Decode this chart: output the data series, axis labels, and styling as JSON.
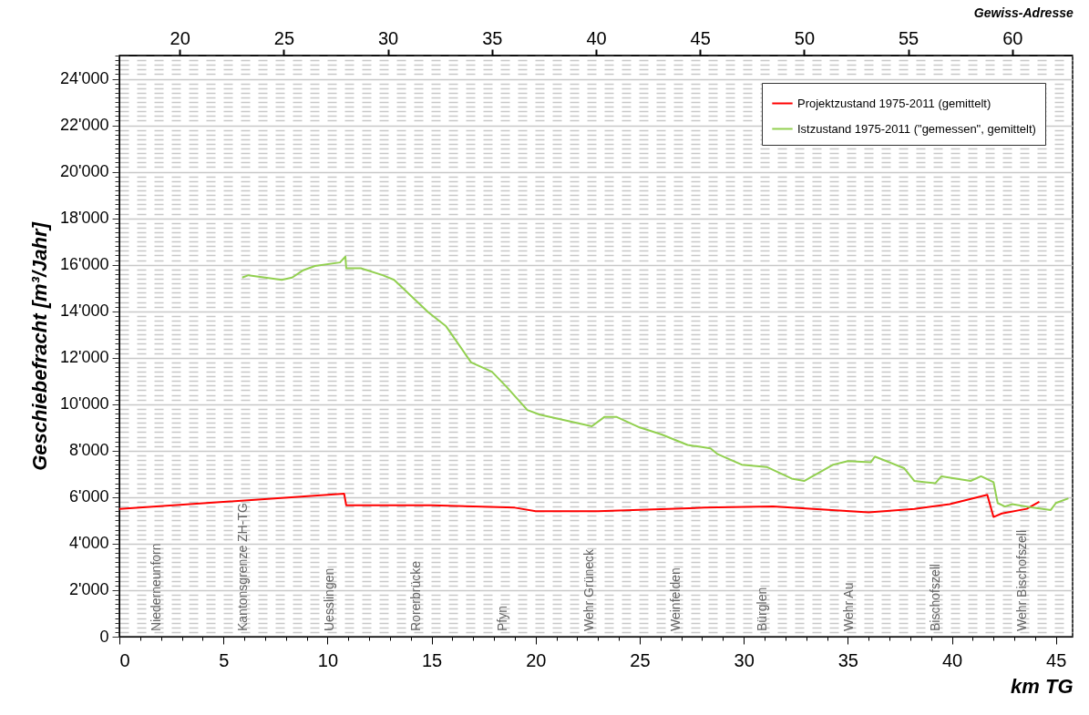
{
  "chart_data": {
    "type": "line",
    "title": "Gewiss-Adresse",
    "xlabel": "km TG",
    "ylabel": "Geschiebefracht [m³/Jahr]",
    "xlim": [
      0,
      45.8
    ],
    "ylim": [
      0,
      25000
    ],
    "xticks": [
      0,
      {
        "value": 1,
        "label": null
      },
      {
        "value": 2,
        "label": null
      },
      {
        "value": 3,
        "label": null
      },
      {
        "value": 4,
        "label": null
      },
      5,
      {
        "value": 6,
        "label": null
      },
      {
        "value": 7,
        "label": null
      },
      {
        "value": 8,
        "label": null
      },
      {
        "value": 9,
        "label": null
      },
      10,
      {
        "value": 11,
        "label": null
      },
      {
        "value": 12,
        "label": null
      },
      {
        "value": 13,
        "label": null
      },
      {
        "value": 14,
        "label": null
      },
      15,
      {
        "value": 16,
        "label": null
      },
      {
        "value": 17,
        "label": null
      },
      {
        "value": 18,
        "label": null
      },
      {
        "value": 19,
        "label": null
      },
      20,
      {
        "value": 21,
        "label": null
      },
      {
        "value": 22,
        "label": null
      },
      {
        "value": 23,
        "label": null
      },
      {
        "value": 24,
        "label": null
      },
      25,
      {
        "value": 26,
        "label": null
      },
      {
        "value": 27,
        "label": null
      },
      {
        "value": 28,
        "label": null
      },
      {
        "value": 29,
        "label": null
      },
      30,
      {
        "value": 31,
        "label": null
      },
      {
        "value": 32,
        "label": null
      },
      {
        "value": 33,
        "label": null
      },
      {
        "value": 34,
        "label": null
      },
      35,
      {
        "value": 36,
        "label": null
      },
      {
        "value": 37,
        "label": null
      },
      {
        "value": 38,
        "label": null
      },
      {
        "value": 39,
        "label": null
      },
      40,
      {
        "value": 41,
        "label": null
      },
      {
        "value": 42,
        "label": null
      },
      {
        "value": 43,
        "label": null
      },
      {
        "value": 44,
        "label": null
      },
      45
    ],
    "x2lim": [
      17.1,
      62.9
    ],
    "x2ticks": [
      20,
      25,
      30,
      35,
      40,
      45,
      50,
      55,
      60
    ],
    "yticks": [
      {
        "value": 0,
        "label": "0"
      },
      {
        "value": 200,
        "label": null
      },
      {
        "value": 400,
        "label": null
      },
      {
        "value": 600,
        "label": null
      },
      {
        "value": 800,
        "label": null
      },
      {
        "value": 1000,
        "label": null
      },
      {
        "value": 1200,
        "label": null
      },
      {
        "value": 1400,
        "label": null
      },
      {
        "value": 1600,
        "label": null
      },
      {
        "value": 1800,
        "label": null
      },
      {
        "value": 2000,
        "label": "2'000"
      },
      {
        "value": 2200,
        "label": null
      },
      {
        "value": 2400,
        "label": null
      },
      {
        "value": 2600,
        "label": null
      },
      {
        "value": 2800,
        "label": null
      },
      {
        "value": 3000,
        "label": null
      },
      {
        "value": 3200,
        "label": null
      },
      {
        "value": 3400,
        "label": null
      },
      {
        "value": 3600,
        "label": null
      },
      {
        "value": 3800,
        "label": null
      },
      {
        "value": 4000,
        "label": "4'000"
      },
      {
        "value": 4200,
        "label": null
      },
      {
        "value": 4400,
        "label": null
      },
      {
        "value": 4600,
        "label": null
      },
      {
        "value": 4800,
        "label": null
      },
      {
        "value": 5000,
        "label": null
      },
      {
        "value": 5200,
        "label": null
      },
      {
        "value": 5400,
        "label": null
      },
      {
        "value": 5600,
        "label": null
      },
      {
        "value": 5800,
        "label": null
      },
      {
        "value": 6000,
        "label": "6'000"
      },
      {
        "value": 6200,
        "label": null
      },
      {
        "value": 6400,
        "label": null
      },
      {
        "value": 6600,
        "label": null
      },
      {
        "value": 6800,
        "label": null
      },
      {
        "value": 7000,
        "label": null
      },
      {
        "value": 7200,
        "label": null
      },
      {
        "value": 7400,
        "label": null
      },
      {
        "value": 7600,
        "label": null
      },
      {
        "value": 7800,
        "label": null
      },
      {
        "value": 8000,
        "label": "8'000"
      },
      {
        "value": 8200,
        "label": null
      },
      {
        "value": 8400,
        "label": null
      },
      {
        "value": 8600,
        "label": null
      },
      {
        "value": 8800,
        "label": null
      },
      {
        "value": 9000,
        "label": null
      },
      {
        "value": 9200,
        "label": null
      },
      {
        "value": 9400,
        "label": null
      },
      {
        "value": 9600,
        "label": null
      },
      {
        "value": 9800,
        "label": null
      },
      {
        "value": 10000,
        "label": "10'000"
      },
      {
        "value": 10200,
        "label": null
      },
      {
        "value": 10400,
        "label": null
      },
      {
        "value": 10600,
        "label": null
      },
      {
        "value": 10800,
        "label": null
      },
      {
        "value": 11000,
        "label": null
      },
      {
        "value": 11200,
        "label": null
      },
      {
        "value": 11400,
        "label": null
      },
      {
        "value": 11600,
        "label": null
      },
      {
        "value": 11800,
        "label": null
      },
      {
        "value": 12000,
        "label": "12'000"
      },
      {
        "value": 12200,
        "label": null
      },
      {
        "value": 12400,
        "label": null
      },
      {
        "value": 12600,
        "label": null
      },
      {
        "value": 12800,
        "label": null
      },
      {
        "value": 13000,
        "label": null
      },
      {
        "value": 13200,
        "label": null
      },
      {
        "value": 13400,
        "label": null
      },
      {
        "value": 13600,
        "label": null
      },
      {
        "value": 13800,
        "label": null
      },
      {
        "value": 14000,
        "label": "14'000"
      },
      {
        "value": 14200,
        "label": null
      },
      {
        "value": 14400,
        "label": null
      },
      {
        "value": 14600,
        "label": null
      },
      {
        "value": 14800,
        "label": null
      },
      {
        "value": 15000,
        "label": null
      },
      {
        "value": 15200,
        "label": null
      },
      {
        "value": 15400,
        "label": null
      },
      {
        "value": 15600,
        "label": null
      },
      {
        "value": 15800,
        "label": null
      },
      {
        "value": 16000,
        "label": "16'000"
      },
      {
        "value": 16200,
        "label": null
      },
      {
        "value": 16400,
        "label": null
      },
      {
        "value": 16600,
        "label": null
      },
      {
        "value": 16800,
        "label": null
      },
      {
        "value": 17000,
        "label": null
      },
      {
        "value": 17200,
        "label": null
      },
      {
        "value": 17400,
        "label": null
      },
      {
        "value": 17600,
        "label": null
      },
      {
        "value": 17800,
        "label": null
      },
      {
        "value": 18000,
        "label": "18'000"
      },
      {
        "value": 18200,
        "label": null
      },
      {
        "value": 18400,
        "label": null
      },
      {
        "value": 18600,
        "label": null
      },
      {
        "value": 18800,
        "label": null
      },
      {
        "value": 19000,
        "label": null
      },
      {
        "value": 19200,
        "label": null
      },
      {
        "value": 19400,
        "label": null
      },
      {
        "value": 19600,
        "label": null
      },
      {
        "value": 19800,
        "label": null
      },
      {
        "value": 20000,
        "label": "20'000"
      },
      {
        "value": 20200,
        "label": null
      },
      {
        "value": 20400,
        "label": null
      },
      {
        "value": 20600,
        "label": null
      },
      {
        "value": 20800,
        "label": null
      },
      {
        "value": 21000,
        "label": null
      },
      {
        "value": 21200,
        "label": null
      },
      {
        "value": 21400,
        "label": null
      },
      {
        "value": 21600,
        "label": null
      },
      {
        "value": 21800,
        "label": null
      },
      {
        "value": 22000,
        "label": "22'000"
      },
      {
        "value": 22200,
        "label": null
      },
      {
        "value": 22400,
        "label": null
      },
      {
        "value": 22600,
        "label": null
      },
      {
        "value": 22800,
        "label": null
      },
      {
        "value": 23000,
        "label": null
      },
      {
        "value": 23200,
        "label": null
      },
      {
        "value": 23400,
        "label": null
      },
      {
        "value": 23600,
        "label": null
      },
      {
        "value": 23800,
        "label": null
      },
      {
        "value": 24000,
        "label": "24'000"
      },
      {
        "value": 24200,
        "label": null
      },
      {
        "value": 24400,
        "label": null
      },
      {
        "value": 24600,
        "label": null
      },
      {
        "value": 24800,
        "label": null
      },
      {
        "value": 25000,
        "label": null
      }
    ],
    "grid": "y",
    "legend": "top right",
    "line_style": "solid",
    "marker": "none",
    "series": [
      {
        "name": "Projektzustand 1975-2011 (gemittelt)",
        "color": "#ff0000",
        "x": [
          0,
          5,
          10.8,
          10.9,
          15,
          17,
          19,
          20,
          20.5,
          23.0,
          28.1,
          31.4,
          36.0,
          38.2,
          39.9,
          41.7,
          42.0,
          42.4,
          43.6,
          44.2
        ],
        "values": [
          5500,
          5800,
          6150,
          5650,
          5650,
          5600,
          5550,
          5400,
          5400,
          5400,
          5550,
          5600,
          5350,
          5500,
          5700,
          6100,
          5150,
          5300,
          5500,
          5800
        ]
      },
      {
        "name": "Istzustand 1975-2011 (\"gemessen\", gemittelt)",
        "color": "#92d050",
        "x": [
          5.9,
          6.2,
          7.0,
          7.8,
          8.3,
          8.8,
          9.4,
          10.6,
          10.86,
          10.9,
          11.6,
          12.65,
          13.2,
          14.85,
          15.7,
          16.9,
          17.9,
          18.6,
          19.6,
          20.2,
          22.7,
          23.3,
          23.9,
          25.0,
          26.05,
          27.3,
          28.4,
          28.75,
          29.9,
          31.1,
          32.3,
          32.9,
          34.3,
          35.0,
          36.1,
          36.3,
          37.7,
          38.2,
          39.2,
          39.5,
          40.9,
          41.4,
          42.0,
          42.2,
          42.55,
          42.9,
          43.9,
          44.75,
          45.0,
          45.6
        ],
        "values": [
          15450,
          15550,
          15450,
          15350,
          15450,
          15750,
          15950,
          16100,
          16350,
          15850,
          15850,
          15550,
          15350,
          13950,
          13350,
          11800,
          11400,
          10750,
          9750,
          9550,
          9050,
          9450,
          9450,
          9000,
          8700,
          8250,
          8100,
          7850,
          7400,
          7300,
          6800,
          6700,
          7400,
          7550,
          7500,
          7750,
          7250,
          6700,
          6600,
          6900,
          6700,
          6900,
          6650,
          5750,
          5600,
          5700,
          5550,
          5450,
          5750,
          5950
        ]
      }
    ],
    "annotations": [
      "Niederneunforn",
      "Kantonsgrenze ZH-TG",
      "Uesslingen",
      "Rorerbrücke",
      "Pfyn",
      "Wehr Grüneck",
      "Weinfelden",
      "Bürglen",
      "Wehr Au",
      "Bischofszell",
      "Wehr Bischofszell"
    ]
  }
}
